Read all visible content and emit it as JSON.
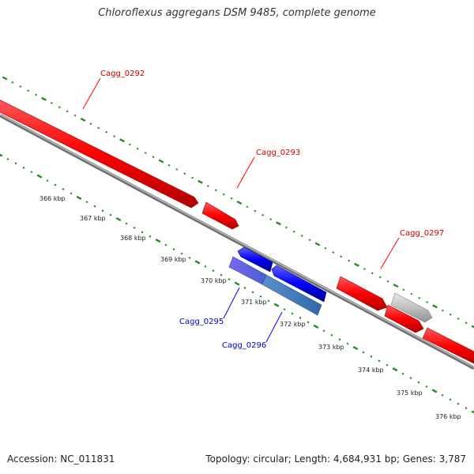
{
  "title": "Chloroflexus aggregans DSM 9485, complete genome",
  "footer": {
    "accession": "Accession: NC_011831",
    "summary": "Topology: circular; Length: 4,684,931 bp; Genes: 3,787"
  },
  "colors": {
    "forward_gene": "#ff0000",
    "reverse_gene": "#0000ff",
    "reverse_gene_alt": "#6a5acd",
    "reverse_gene_steel": "#4682b4",
    "other_gene": "#c0c0c0",
    "backbone": "#808080",
    "ticks": "#228b22",
    "forward_label": "#cc0000",
    "reverse_label": "#0000cc"
  },
  "scale": {
    "tick_labels": [
      "366 kbp",
      "367 kbp",
      "368 kbp",
      "369 kbp",
      "370 kbp",
      "371 kbp",
      "372 kbp",
      "373 kbp",
      "374 kbp",
      "375 kbp",
      "376 kbp"
    ]
  },
  "genes": [
    {
      "id": "cagg0292",
      "label": "Cagg_0292",
      "strand": "forward",
      "color": "#ff0000"
    },
    {
      "id": "cagg0293",
      "label": "Cagg_0293",
      "strand": "forward",
      "color": "#ff0000"
    },
    {
      "id": "cagg0294",
      "label": "",
      "strand": "reverse",
      "color": "#0000ff"
    },
    {
      "id": "cagg0295",
      "label": "Cagg_0295",
      "strand": "reverse",
      "color": "#6a5acd"
    },
    {
      "id": "cagg0296",
      "label": "Cagg_0296",
      "strand": "reverse",
      "color": "#4682b4"
    },
    {
      "id": "cagg0297",
      "label": "Cagg_0297",
      "strand": "forward",
      "color": "#ff0000"
    },
    {
      "id": "gene-grey",
      "label": "",
      "strand": "forward",
      "color": "#c0c0c0"
    },
    {
      "id": "gene-red-a",
      "label": "",
      "strand": "forward",
      "color": "#ff0000"
    },
    {
      "id": "gene-red-b",
      "label": "",
      "strand": "forward",
      "color": "#ff0000"
    }
  ]
}
